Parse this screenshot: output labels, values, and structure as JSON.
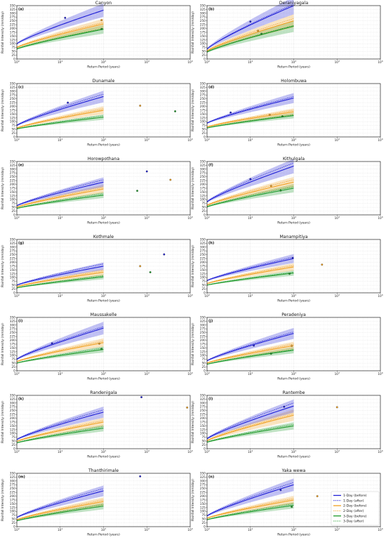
{
  "figure": {
    "xlabel": "Return Period (years)",
    "ylabel": "Rainfall Intensity (mm/day)",
    "xticks": [
      "10^0",
      "10^1",
      "10^2",
      "10^3",
      "10^4"
    ],
    "yticks": [
      0,
      25,
      50,
      75,
      100,
      125,
      150,
      175,
      200,
      225,
      250,
      275,
      300,
      325,
      350
    ],
    "colors": {
      "1day": "#1f1fd6",
      "2day": "#f0a020",
      "3day": "#1e9a2a"
    },
    "legend": {
      "placement": "lower-right of panel (n)",
      "entries": [
        "1-Day (before)",
        "1-Day (after)",
        "2-Day (before)",
        "2-Day (after)",
        "3-Day (before)",
        "3-Day (after)"
      ]
    }
  },
  "chart_data": [
    {
      "type": "line",
      "label": "(a)",
      "title": "Canyon",
      "xscale": "log",
      "xlim": [
        1,
        10000
      ],
      "ylim": [
        0,
        350
      ],
      "curves": {
        "d1b": [
          100,
          320
        ],
        "d1a": [
          100,
          320
        ],
        "d2b": [
          75,
          230
        ],
        "d2a": [
          78,
          240
        ],
        "d3b": [
          65,
          195
        ],
        "d3a": [
          68,
          200
        ]
      },
      "points": [
        {
          "series": "1-Day",
          "x": 13,
          "y": 270
        },
        {
          "series": "2-Day",
          "x": 90,
          "y": 255
        },
        {
          "series": "3-Day",
          "x": 90,
          "y": 197
        }
      ]
    },
    {
      "type": "line",
      "label": "(b)",
      "title": "Deraniyagala",
      "xscale": "log",
      "xlim": [
        1,
        10000
      ],
      "ylim": [
        0,
        350
      ],
      "curves": {
        "d1b": [
          65,
          350
        ],
        "d1a": [
          65,
          360
        ],
        "d2b": [
          52,
          250
        ],
        "d2a": [
          55,
          265
        ],
        "d3b": [
          45,
          215
        ],
        "d3a": [
          47,
          220
        ]
      },
      "points": [
        {
          "series": "1-Day",
          "x": 10,
          "y": 245
        },
        {
          "series": "2-Day",
          "x": 15,
          "y": 185
        },
        {
          "series": "3-Day",
          "x": 18,
          "y": 165
        }
      ]
    },
    {
      "type": "line",
      "label": "(c)",
      "title": "Dunamale",
      "xscale": "log",
      "xlim": [
        1,
        10000
      ],
      "ylim": [
        0,
        350
      ],
      "curves": {
        "d1b": [
          75,
          265
        ],
        "d1a": [
          78,
          280
        ],
        "d2b": [
          58,
          175
        ],
        "d2a": [
          60,
          185
        ],
        "d3b": [
          52,
          130
        ],
        "d3a": [
          54,
          140
        ]
      },
      "points": [
        {
          "series": "1-Day",
          "x": 15,
          "y": 225
        },
        {
          "series": "2-Day",
          "x": 700,
          "y": 205
        },
        {
          "series": "3-Day",
          "x": 4500,
          "y": 168
        }
      ]
    },
    {
      "type": "line",
      "label": "(d)",
      "title": "Holombuwa",
      "xscale": "log",
      "xlim": [
        1,
        10000
      ],
      "ylim": [
        0,
        350
      ],
      "curves": {
        "d1b": [
          90,
          255
        ],
        "d1a": [
          92,
          265
        ],
        "d2b": [
          65,
          165
        ],
        "d2a": [
          67,
          175
        ],
        "d3b": [
          58,
          140
        ],
        "d3a": [
          60,
          145
        ]
      },
      "points": [
        {
          "series": "1-Day",
          "x": 3.5,
          "y": 160
        },
        {
          "series": "2-Day",
          "x": 28,
          "y": 145
        },
        {
          "series": "3-Day",
          "x": 55,
          "y": 135
        }
      ]
    },
    {
      "type": "line",
      "label": "(e)",
      "title": "Horowpothana",
      "xscale": "log",
      "xlim": [
        1,
        10000
      ],
      "ylim": [
        0,
        350
      ],
      "curves": {
        "d1b": [
          60,
          215
        ],
        "d1a": [
          62,
          230
        ],
        "d2b": [
          50,
          170
        ],
        "d2a": [
          52,
          180
        ],
        "d3b": [
          42,
          130
        ],
        "d3a": [
          44,
          140
        ]
      },
      "points": [
        {
          "series": "1-Day",
          "x": 1000,
          "y": 285
        },
        {
          "series": "3-Day",
          "x": 600,
          "y": 158
        },
        {
          "series": "2-Day",
          "x": 3500,
          "y": 230
        }
      ]
    },
    {
      "type": "line",
      "label": "(f)",
      "title": "Kithulgala",
      "xscale": "log",
      "xlim": [
        1,
        10000
      ],
      "ylim": [
        0,
        350
      ],
      "curves": {
        "d1b": [
          85,
          320
        ],
        "d1a": [
          88,
          340
        ],
        "d2b": [
          62,
          215
        ],
        "d2a": [
          65,
          230
        ],
        "d3b": [
          52,
          175
        ],
        "d3a": [
          55,
          185
        ]
      },
      "points": [
        {
          "series": "1-Day",
          "x": 10,
          "y": 235
        },
        {
          "series": "2-Day",
          "x": 30,
          "y": 190
        },
        {
          "series": "3-Day",
          "x": 50,
          "y": 160
        }
      ]
    },
    {
      "type": "line",
      "label": "(g)",
      "title": "Kothmale",
      "xscale": "log",
      "xlim": [
        1,
        10000
      ],
      "ylim": [
        0,
        350
      ],
      "curves": {
        "d1b": [
          50,
          175
        ],
        "d1a": [
          52,
          190
        ],
        "d2b": [
          40,
          135
        ],
        "d2a": [
          42,
          145
        ],
        "d3b": [
          32,
          105
        ],
        "d3a": [
          34,
          112
        ]
      },
      "points": [
        {
          "series": "1-Day",
          "x": 2500,
          "y": 252
        },
        {
          "series": "2-Day",
          "x": 700,
          "y": 175
        },
        {
          "series": "3-Day",
          "x": 1200,
          "y": 135
        }
      ]
    },
    {
      "type": "line",
      "label": "(h)",
      "title": "Manampitiya",
      "xscale": "log",
      "xlim": [
        1,
        10000
      ],
      "ylim": [
        0,
        350
      ],
      "curves": {
        "d1b": [
          80,
          225
        ],
        "d1a": [
          82,
          235
        ],
        "d2b": [
          60,
          170
        ],
        "d2a": [
          62,
          180
        ],
        "d3b": [
          50,
          130
        ],
        "d3a": [
          52,
          135
        ]
      },
      "points": [
        {
          "series": "1-Day",
          "x": 95,
          "y": 228
        },
        {
          "series": "2-Day",
          "x": 450,
          "y": 185
        },
        {
          "series": "3-Day",
          "x": 80,
          "y": 125
        }
      ]
    },
    {
      "type": "line",
      "label": "(i)",
      "title": "Maussakelle",
      "xscale": "log",
      "xlim": [
        1,
        10000
      ],
      "ylim": [
        0,
        350
      ],
      "curves": {
        "d1b": [
          75,
          280
        ],
        "d1a": [
          78,
          290
        ],
        "d2b": [
          60,
          185
        ],
        "d2a": [
          62,
          195
        ],
        "d3b": [
          50,
          140
        ],
        "d3a": [
          52,
          150
        ]
      },
      "points": [
        {
          "series": "1-Day",
          "x": 6.5,
          "y": 180
        },
        {
          "series": "2-Day",
          "x": 80,
          "y": 178
        },
        {
          "series": "3-Day",
          "x": 90,
          "y": 143
        }
      ]
    },
    {
      "type": "line",
      "label": "(j)",
      "title": "Peradeniya",
      "xscale": "log",
      "xlim": [
        1,
        10000
      ],
      "ylim": [
        0,
        350
      ],
      "curves": {
        "d1b": [
          65,
          245
        ],
        "d1a": [
          67,
          255
        ],
        "d2b": [
          50,
          165
        ],
        "d2a": [
          52,
          175
        ],
        "d3b": [
          42,
          135
        ],
        "d3a": [
          44,
          140
        ]
      },
      "points": [
        {
          "series": "1-Day",
          "x": 12,
          "y": 165
        },
        {
          "series": "2-Day",
          "x": 90,
          "y": 163
        },
        {
          "series": "3-Day",
          "x": 30,
          "y": 112
        }
      ]
    },
    {
      "type": "line",
      "label": "(k)",
      "title": "Randenigala",
      "xscale": "log",
      "xlim": [
        1,
        10000
      ],
      "ylim": [
        0,
        350
      ],
      "curves": {
        "d1b": [
          60,
          240
        ],
        "d1a": [
          62,
          255
        ],
        "d2b": [
          48,
          175
        ],
        "d2a": [
          50,
          185
        ],
        "d3b": [
          38,
          135
        ],
        "d3a": [
          40,
          145
        ]
      },
      "points": [
        {
          "series": "1-Day",
          "x": 750,
          "y": 338
        },
        {
          "series": "2-Day",
          "x": 8500,
          "y": 270
        }
      ]
    },
    {
      "type": "line",
      "label": "(l)",
      "title": "Rantembe",
      "xscale": "log",
      "xlim": [
        1,
        10000
      ],
      "ylim": [
        0,
        350
      ],
      "curves": {
        "d1b": [
          65,
          280
        ],
        "d1a": [
          68,
          300
        ],
        "d2b": [
          52,
          220
        ],
        "d2a": [
          55,
          230
        ],
        "d3b": [
          42,
          150
        ],
        "d3a": [
          45,
          160
        ]
      },
      "points": [
        {
          "series": "1-Day",
          "x": 60,
          "y": 275
        },
        {
          "series": "2-Day",
          "x": 1000,
          "y": 272
        }
      ]
    },
    {
      "type": "line",
      "label": "(m)",
      "title": "Thanthirimale",
      "xscale": "log",
      "xlim": [
        1,
        10000
      ],
      "ylim": [
        0,
        350
      ],
      "curves": {
        "d1b": [
          60,
          235
        ],
        "d1a": [
          62,
          250
        ],
        "d2b": [
          45,
          165
        ],
        "d2a": [
          47,
          175
        ],
        "d3b": [
          38,
          135
        ],
        "d3a": [
          40,
          145
        ]
      },
      "points": [
        {
          "series": "1-Day",
          "x": 700,
          "y": 330
        }
      ]
    },
    {
      "type": "line",
      "label": "(n)",
      "title": "Yaka wewa",
      "xscale": "log",
      "xlim": [
        1,
        10000
      ],
      "ylim": [
        0,
        350
      ],
      "curves": {
        "d1b": [
          70,
          275
        ],
        "d1a": [
          72,
          290
        ],
        "d2b": [
          55,
          175
        ],
        "d2a": [
          57,
          185
        ],
        "d3b": [
          45,
          140
        ],
        "d3a": [
          47,
          150
        ]
      },
      "points": [
        {
          "series": "1-Day",
          "x": 50,
          "y": 240
        },
        {
          "series": "2-Day",
          "x": 350,
          "y": 200
        },
        {
          "series": "3-Day",
          "x": 90,
          "y": 130
        }
      ]
    }
  ]
}
